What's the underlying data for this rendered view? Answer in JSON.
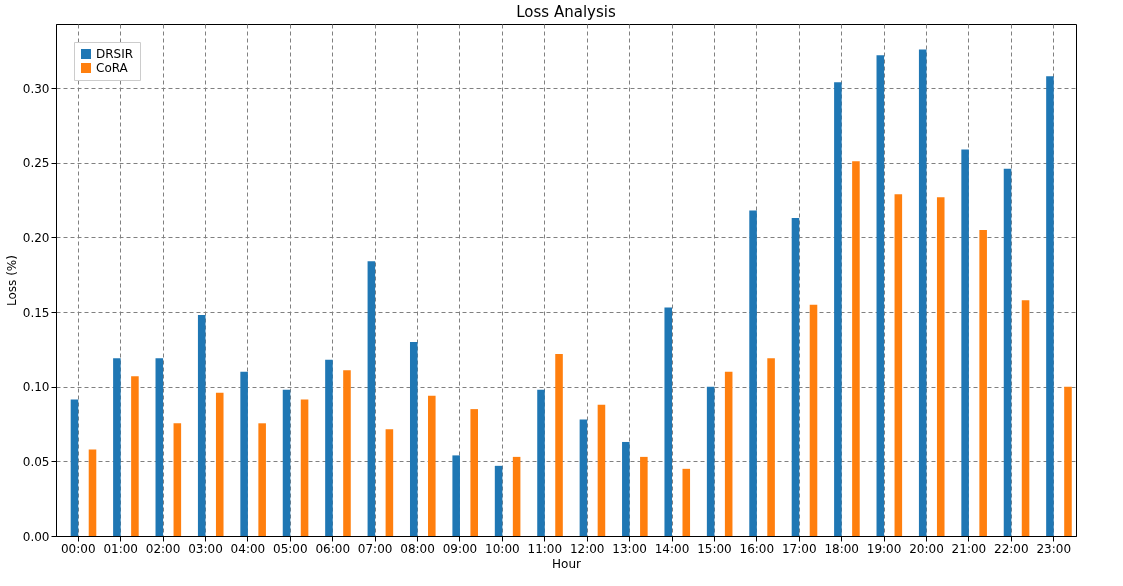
{
  "chart_data": {
    "type": "bar",
    "title": "Loss Analysis",
    "xlabel": "Hour",
    "ylabel": "Loss (%)",
    "categories": [
      "00:00",
      "01:00",
      "02:00",
      "03:00",
      "04:00",
      "05:00",
      "06:00",
      "07:00",
      "08:00",
      "09:00",
      "10:00",
      "11:00",
      "12:00",
      "13:00",
      "14:00",
      "15:00",
      "16:00",
      "17:00",
      "18:00",
      "19:00",
      "20:00",
      "21:00",
      "22:00",
      "23:00"
    ],
    "series": [
      {
        "name": "DRSIR",
        "color": "#1f77b4",
        "values": [
          0.0915,
          0.119,
          0.119,
          0.148,
          0.11,
          0.098,
          0.118,
          0.184,
          0.13,
          0.054,
          0.047,
          0.098,
          0.078,
          0.063,
          0.153,
          0.1,
          0.218,
          0.213,
          0.304,
          0.322,
          0.326,
          0.259,
          0.246,
          0.308
        ]
      },
      {
        "name": "CoRA",
        "color": "#ff7f0e",
        "values": [
          0.058,
          0.107,
          0.0755,
          0.096,
          0.0755,
          0.0915,
          0.111,
          0.0715,
          0.094,
          0.085,
          0.053,
          0.122,
          0.088,
          0.053,
          0.045,
          0.11,
          0.119,
          0.155,
          0.251,
          0.229,
          0.227,
          0.205,
          0.158,
          0.1
        ]
      }
    ],
    "ylim": [
      0,
      0.343
    ],
    "yticks": [
      {
        "value": 0,
        "label": "0.00"
      },
      {
        "value": 0.05,
        "label": "0.05"
      },
      {
        "value": 0.1,
        "label": "0.10"
      },
      {
        "value": 0.15,
        "label": "0.15"
      },
      {
        "value": 0.2,
        "label": "0.20"
      },
      {
        "value": 0.25,
        "label": "0.25"
      },
      {
        "value": 0.3,
        "label": "0.30"
      }
    ],
    "grid": true,
    "legend": "top left"
  }
}
